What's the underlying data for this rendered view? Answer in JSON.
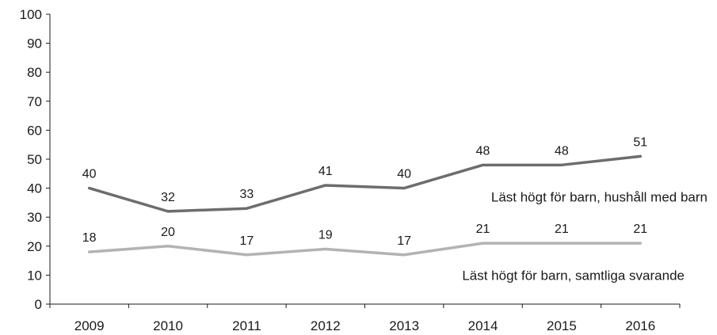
{
  "chart_data": {
    "type": "line",
    "title": "",
    "xlabel": "",
    "ylabel": "",
    "categories": [
      "2009",
      "2010",
      "2011",
      "2012",
      "2013",
      "2014",
      "2015",
      "2016"
    ],
    "ylim": [
      0,
      100
    ],
    "yticks": [
      0,
      10,
      20,
      30,
      40,
      50,
      60,
      70,
      80,
      90,
      100
    ],
    "grid": false,
    "series": [
      {
        "name": "Läst högt för barn, hushåll med barn",
        "values": [
          40,
          32,
          33,
          41,
          40,
          48,
          48,
          51
        ],
        "color": "#6d6d6d"
      },
      {
        "name": "Läst högt för barn, samtliga svarande",
        "values": [
          18,
          20,
          17,
          19,
          17,
          21,
          21,
          21
        ],
        "color": "#b3b3b3"
      }
    ]
  }
}
